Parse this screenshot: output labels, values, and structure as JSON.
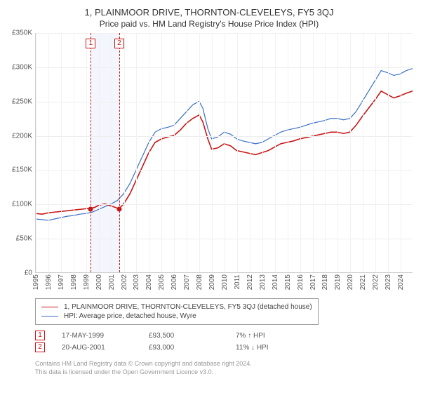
{
  "title": "1, PLAINMOOR DRIVE, THORNTON-CLEVELEYS, FY5 3QJ",
  "subtitle": "Price paid vs. HM Land Registry's House Price Index (HPI)",
  "structure": "line",
  "background_color": "#ffffff",
  "grid_color": "#eeeeee",
  "currency_prefix": "£",
  "y": {
    "min": 0,
    "max": 350000,
    "step": 50000,
    "ticks": [
      "£0",
      "£50K",
      "£100K",
      "£150K",
      "£200K",
      "£250K",
      "£300K",
      "£350K"
    ],
    "tick_fontsize": 10
  },
  "x": {
    "min": 1995,
    "max": 2025,
    "step": 1,
    "ticks": [
      "1995",
      "1996",
      "1997",
      "1998",
      "1999",
      "2000",
      "2001",
      "2002",
      "2003",
      "2004",
      "2005",
      "2006",
      "2007",
      "2008",
      "2009",
      "2010",
      "2011",
      "2012",
      "2013",
      "2014",
      "2015",
      "2016",
      "2017",
      "2018",
      "2019",
      "2020",
      "2021",
      "2022",
      "2023",
      "2024"
    ],
    "tick_fontsize": 10
  },
  "highlight_band": {
    "from": 1999.37,
    "to": 2001.63,
    "color": "rgba(70,100,220,0.06)"
  },
  "markers": [
    {
      "id": "1",
      "date": "17-MAY-1999",
      "year": 1999.37,
      "price": 93500,
      "price_label": "£93,500",
      "hpi": "7% ↑ HPI",
      "color": "#c71616"
    },
    {
      "id": "2",
      "date": "20-AUG-2001",
      "year": 2001.63,
      "price": 93000,
      "price_label": "£93,000",
      "hpi": "11% ↓ HPI",
      "color": "#c71616"
    }
  ],
  "series": [
    {
      "name": "hpi",
      "label": "HPI: Average price, detached house, Wyre",
      "color": "#3b6fc4",
      "line_width": 1.2,
      "points": [
        [
          1995.0,
          78000
        ],
        [
          1995.5,
          77000
        ],
        [
          1996.0,
          76000
        ],
        [
          1996.5,
          78000
        ],
        [
          1997.0,
          80000
        ],
        [
          1997.5,
          82000
        ],
        [
          1998.0,
          83000
        ],
        [
          1998.5,
          85000
        ],
        [
          1999.0,
          86000
        ],
        [
          1999.5,
          88000
        ],
        [
          2000.0,
          92000
        ],
        [
          2000.5,
          96000
        ],
        [
          2001.0,
          100000
        ],
        [
          2001.5,
          105000
        ],
        [
          2002.0,
          115000
        ],
        [
          2002.5,
          130000
        ],
        [
          2003.0,
          150000
        ],
        [
          2003.5,
          170000
        ],
        [
          2004.0,
          190000
        ],
        [
          2004.5,
          205000
        ],
        [
          2005.0,
          210000
        ],
        [
          2005.5,
          212000
        ],
        [
          2006.0,
          215000
        ],
        [
          2006.5,
          225000
        ],
        [
          2007.0,
          235000
        ],
        [
          2007.5,
          245000
        ],
        [
          2008.0,
          250000
        ],
        [
          2008.3,
          240000
        ],
        [
          2008.7,
          210000
        ],
        [
          2009.0,
          195000
        ],
        [
          2009.5,
          198000
        ],
        [
          2010.0,
          205000
        ],
        [
          2010.5,
          202000
        ],
        [
          2011.0,
          195000
        ],
        [
          2011.5,
          192000
        ],
        [
          2012.0,
          190000
        ],
        [
          2012.5,
          188000
        ],
        [
          2013.0,
          190000
        ],
        [
          2013.5,
          195000
        ],
        [
          2014.0,
          200000
        ],
        [
          2014.5,
          205000
        ],
        [
          2015.0,
          208000
        ],
        [
          2015.5,
          210000
        ],
        [
          2016.0,
          212000
        ],
        [
          2016.5,
          215000
        ],
        [
          2017.0,
          218000
        ],
        [
          2017.5,
          220000
        ],
        [
          2018.0,
          222000
        ],
        [
          2018.5,
          225000
        ],
        [
          2019.0,
          225000
        ],
        [
          2019.5,
          223000
        ],
        [
          2020.0,
          225000
        ],
        [
          2020.5,
          235000
        ],
        [
          2021.0,
          250000
        ],
        [
          2021.5,
          265000
        ],
        [
          2022.0,
          280000
        ],
        [
          2022.5,
          295000
        ],
        [
          2023.0,
          292000
        ],
        [
          2023.5,
          288000
        ],
        [
          2024.0,
          290000
        ],
        [
          2024.5,
          295000
        ],
        [
          2025.0,
          298000
        ]
      ]
    },
    {
      "name": "property",
      "label": "1, PLAINMOOR DRIVE, THORNTON-CLEVELEYS, FY5 3QJ (detached house)",
      "color": "#c71616",
      "line_width": 1.6,
      "points": [
        [
          1995.0,
          86000
        ],
        [
          1995.5,
          85000
        ],
        [
          1996.0,
          87000
        ],
        [
          1996.5,
          88000
        ],
        [
          1997.0,
          89000
        ],
        [
          1997.5,
          90000
        ],
        [
          1998.0,
          91000
        ],
        [
          1998.5,
          92000
        ],
        [
          1999.0,
          93000
        ],
        [
          1999.37,
          93500
        ],
        [
          1999.7,
          95000
        ],
        [
          2000.0,
          98000
        ],
        [
          2000.5,
          100000
        ],
        [
          2001.0,
          97000
        ],
        [
          2001.63,
          93000
        ],
        [
          2002.0,
          100000
        ],
        [
          2002.5,
          115000
        ],
        [
          2003.0,
          135000
        ],
        [
          2003.5,
          155000
        ],
        [
          2004.0,
          175000
        ],
        [
          2004.5,
          190000
        ],
        [
          2005.0,
          195000
        ],
        [
          2005.5,
          198000
        ],
        [
          2006.0,
          200000
        ],
        [
          2006.5,
          208000
        ],
        [
          2007.0,
          218000
        ],
        [
          2007.5,
          225000
        ],
        [
          2008.0,
          230000
        ],
        [
          2008.3,
          220000
        ],
        [
          2008.7,
          195000
        ],
        [
          2009.0,
          180000
        ],
        [
          2009.5,
          182000
        ],
        [
          2010.0,
          188000
        ],
        [
          2010.5,
          185000
        ],
        [
          2011.0,
          178000
        ],
        [
          2011.5,
          176000
        ],
        [
          2012.0,
          174000
        ],
        [
          2012.5,
          172000
        ],
        [
          2013.0,
          175000
        ],
        [
          2013.5,
          178000
        ],
        [
          2014.0,
          183000
        ],
        [
          2014.5,
          188000
        ],
        [
          2015.0,
          190000
        ],
        [
          2015.5,
          192000
        ],
        [
          2016.0,
          195000
        ],
        [
          2016.5,
          197000
        ],
        [
          2017.0,
          199000
        ],
        [
          2017.5,
          201000
        ],
        [
          2018.0,
          203000
        ],
        [
          2018.5,
          205000
        ],
        [
          2019.0,
          205000
        ],
        [
          2019.5,
          203000
        ],
        [
          2020.0,
          205000
        ],
        [
          2020.5,
          215000
        ],
        [
          2021.0,
          228000
        ],
        [
          2021.5,
          240000
        ],
        [
          2022.0,
          252000
        ],
        [
          2022.5,
          265000
        ],
        [
          2023.0,
          260000
        ],
        [
          2023.5,
          255000
        ],
        [
          2024.0,
          258000
        ],
        [
          2024.5,
          262000
        ],
        [
          2025.0,
          265000
        ]
      ]
    }
  ],
  "legend": {
    "border_color": "#999999",
    "fontsize": 10
  },
  "footnote": {
    "line1": "Contains HM Land Registry data © Crown copyright and database right 2024.",
    "line2": "This data is licensed under the Open Government Licence v3.0."
  }
}
